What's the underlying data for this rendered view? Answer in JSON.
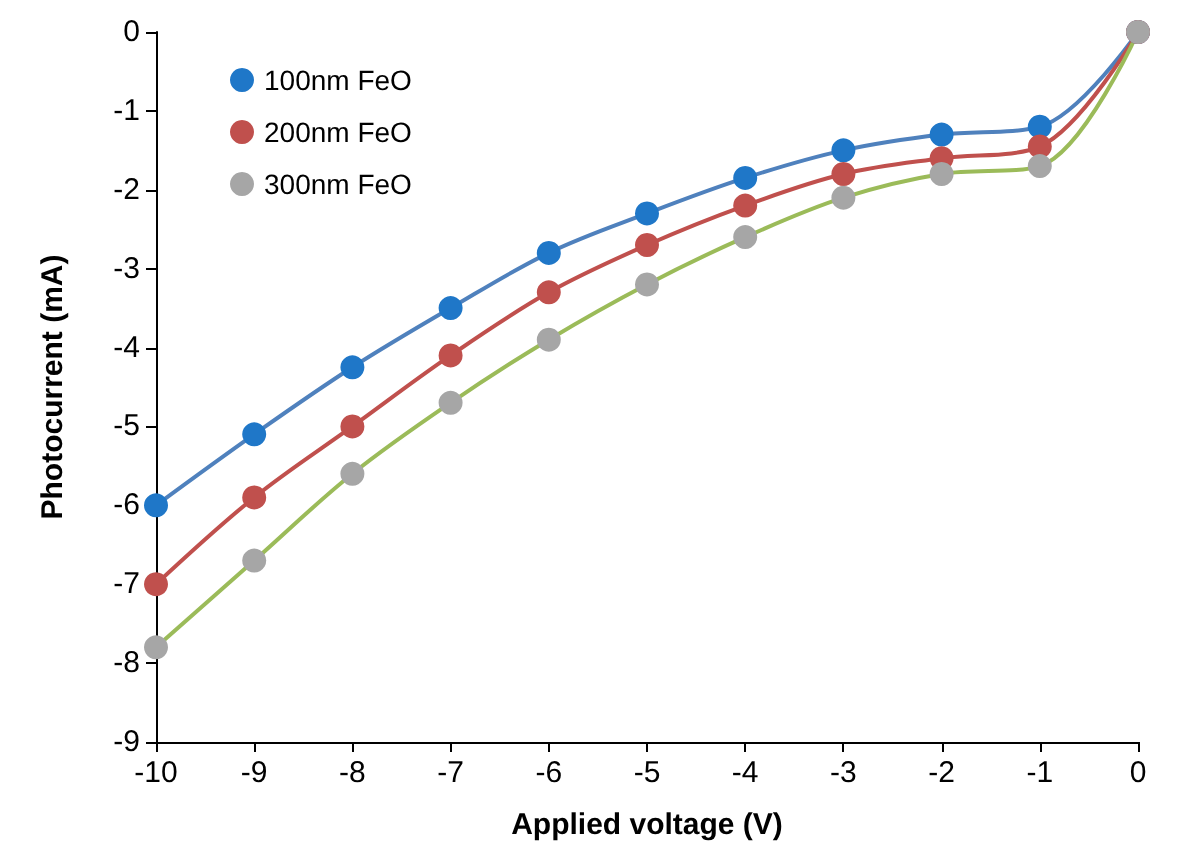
{
  "chart_data": {
    "type": "scatter",
    "xlabel": "Applied voltage (V)",
    "ylabel": "Photocurrent (mA)",
    "x": [
      -10,
      -9,
      -8,
      -7,
      -6,
      -5,
      -4,
      -3,
      -2,
      -1,
      0
    ],
    "series": [
      {
        "type": "line",
        "color": "#4f81bd",
        "marker": "none",
        "values": [
          -6,
          -5.1,
          -4.25,
          -3.5,
          -2.8,
          -2.3,
          -1.85,
          -1.5,
          -1.3,
          -1.2,
          0
        ]
      },
      {
        "type": "line",
        "color": "#c0504d",
        "marker": "none",
        "values": [
          -7,
          -5.9,
          -5.0,
          -4.1,
          -3.3,
          -2.7,
          -2.2,
          -1.8,
          -1.6,
          -1.45,
          0
        ]
      },
      {
        "type": "line",
        "color": "#9bbb59",
        "marker": "none",
        "values": [
          -7.8,
          -6.7,
          -5.6,
          -4.7,
          -3.9,
          -3.2,
          -2.6,
          -2.1,
          -1.8,
          -1.7,
          0
        ]
      },
      {
        "name": "100nm FeO",
        "color": "#1f77c8",
        "values": [
          -6,
          -5.1,
          -4.25,
          -3.5,
          -2.8,
          -2.3,
          -1.85,
          -1.5,
          -1.3,
          -1.2,
          0
        ]
      },
      {
        "name": "200nm FeO",
        "color": "#c0504d",
        "values": [
          -7,
          -5.9,
          -5.0,
          -4.1,
          -3.3,
          -2.7,
          -2.2,
          -1.8,
          -1.6,
          -1.45,
          0
        ]
      },
      {
        "name": "300nm FeO",
        "color": "#a6a6a6",
        "values": [
          -7.8,
          -6.7,
          -5.6,
          -4.7,
          -3.9,
          -3.2,
          -2.6,
          -2.1,
          -1.8,
          -1.7,
          0
        ]
      }
    ],
    "xlim": [
      -10,
      0
    ],
    "xticks": [
      -10,
      -9,
      -8,
      -7,
      -6,
      -5,
      -4,
      -3,
      -2,
      -1,
      0
    ],
    "ylim": [
      -9,
      0
    ],
    "yticks": [
      -9,
      -8,
      -7,
      -6,
      -5,
      -4,
      -3,
      -2,
      -1,
      0
    ],
    "grid": false,
    "legend": "top left",
    "marker": "circle"
  }
}
